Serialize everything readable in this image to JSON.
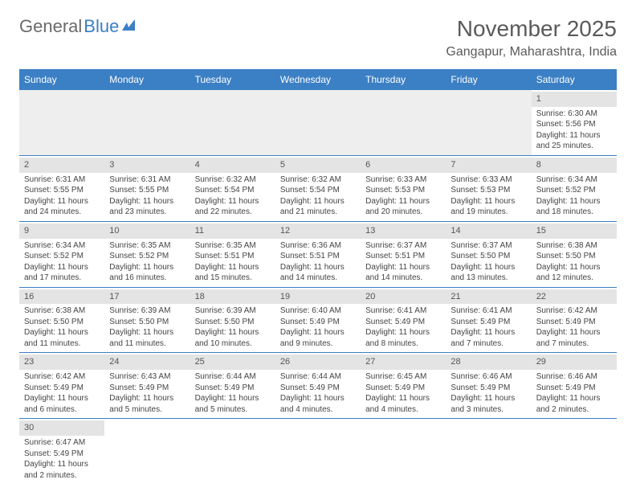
{
  "logo": {
    "general": "General",
    "blue": "Blue"
  },
  "title": "November 2025",
  "location": "Gangapur, Maharashtra, India",
  "colors": {
    "header_bg": "#3b7fc4",
    "daynum_bg": "#e4e4e4",
    "text": "#444",
    "title": "#5a5a5a"
  },
  "weekdays": [
    "Sunday",
    "Monday",
    "Tuesday",
    "Wednesday",
    "Thursday",
    "Friday",
    "Saturday"
  ],
  "weeks": [
    [
      null,
      null,
      null,
      null,
      null,
      null,
      {
        "n": "1",
        "sr": "Sunrise: 6:30 AM",
        "ss": "Sunset: 5:56 PM",
        "dl": "Daylight: 11 hours and 25 minutes."
      }
    ],
    [
      {
        "n": "2",
        "sr": "Sunrise: 6:31 AM",
        "ss": "Sunset: 5:55 PM",
        "dl": "Daylight: 11 hours and 24 minutes."
      },
      {
        "n": "3",
        "sr": "Sunrise: 6:31 AM",
        "ss": "Sunset: 5:55 PM",
        "dl": "Daylight: 11 hours and 23 minutes."
      },
      {
        "n": "4",
        "sr": "Sunrise: 6:32 AM",
        "ss": "Sunset: 5:54 PM",
        "dl": "Daylight: 11 hours and 22 minutes."
      },
      {
        "n": "5",
        "sr": "Sunrise: 6:32 AM",
        "ss": "Sunset: 5:54 PM",
        "dl": "Daylight: 11 hours and 21 minutes."
      },
      {
        "n": "6",
        "sr": "Sunrise: 6:33 AM",
        "ss": "Sunset: 5:53 PM",
        "dl": "Daylight: 11 hours and 20 minutes."
      },
      {
        "n": "7",
        "sr": "Sunrise: 6:33 AM",
        "ss": "Sunset: 5:53 PM",
        "dl": "Daylight: 11 hours and 19 minutes."
      },
      {
        "n": "8",
        "sr": "Sunrise: 6:34 AM",
        "ss": "Sunset: 5:52 PM",
        "dl": "Daylight: 11 hours and 18 minutes."
      }
    ],
    [
      {
        "n": "9",
        "sr": "Sunrise: 6:34 AM",
        "ss": "Sunset: 5:52 PM",
        "dl": "Daylight: 11 hours and 17 minutes."
      },
      {
        "n": "10",
        "sr": "Sunrise: 6:35 AM",
        "ss": "Sunset: 5:52 PM",
        "dl": "Daylight: 11 hours and 16 minutes."
      },
      {
        "n": "11",
        "sr": "Sunrise: 6:35 AM",
        "ss": "Sunset: 5:51 PM",
        "dl": "Daylight: 11 hours and 15 minutes."
      },
      {
        "n": "12",
        "sr": "Sunrise: 6:36 AM",
        "ss": "Sunset: 5:51 PM",
        "dl": "Daylight: 11 hours and 14 minutes."
      },
      {
        "n": "13",
        "sr": "Sunrise: 6:37 AM",
        "ss": "Sunset: 5:51 PM",
        "dl": "Daylight: 11 hours and 14 minutes."
      },
      {
        "n": "14",
        "sr": "Sunrise: 6:37 AM",
        "ss": "Sunset: 5:50 PM",
        "dl": "Daylight: 11 hours and 13 minutes."
      },
      {
        "n": "15",
        "sr": "Sunrise: 6:38 AM",
        "ss": "Sunset: 5:50 PM",
        "dl": "Daylight: 11 hours and 12 minutes."
      }
    ],
    [
      {
        "n": "16",
        "sr": "Sunrise: 6:38 AM",
        "ss": "Sunset: 5:50 PM",
        "dl": "Daylight: 11 hours and 11 minutes."
      },
      {
        "n": "17",
        "sr": "Sunrise: 6:39 AM",
        "ss": "Sunset: 5:50 PM",
        "dl": "Daylight: 11 hours and 11 minutes."
      },
      {
        "n": "18",
        "sr": "Sunrise: 6:39 AM",
        "ss": "Sunset: 5:50 PM",
        "dl": "Daylight: 11 hours and 10 minutes."
      },
      {
        "n": "19",
        "sr": "Sunrise: 6:40 AM",
        "ss": "Sunset: 5:49 PM",
        "dl": "Daylight: 11 hours and 9 minutes."
      },
      {
        "n": "20",
        "sr": "Sunrise: 6:41 AM",
        "ss": "Sunset: 5:49 PM",
        "dl": "Daylight: 11 hours and 8 minutes."
      },
      {
        "n": "21",
        "sr": "Sunrise: 6:41 AM",
        "ss": "Sunset: 5:49 PM",
        "dl": "Daylight: 11 hours and 7 minutes."
      },
      {
        "n": "22",
        "sr": "Sunrise: 6:42 AM",
        "ss": "Sunset: 5:49 PM",
        "dl": "Daylight: 11 hours and 7 minutes."
      }
    ],
    [
      {
        "n": "23",
        "sr": "Sunrise: 6:42 AM",
        "ss": "Sunset: 5:49 PM",
        "dl": "Daylight: 11 hours and 6 minutes."
      },
      {
        "n": "24",
        "sr": "Sunrise: 6:43 AM",
        "ss": "Sunset: 5:49 PM",
        "dl": "Daylight: 11 hours and 5 minutes."
      },
      {
        "n": "25",
        "sr": "Sunrise: 6:44 AM",
        "ss": "Sunset: 5:49 PM",
        "dl": "Daylight: 11 hours and 5 minutes."
      },
      {
        "n": "26",
        "sr": "Sunrise: 6:44 AM",
        "ss": "Sunset: 5:49 PM",
        "dl": "Daylight: 11 hours and 4 minutes."
      },
      {
        "n": "27",
        "sr": "Sunrise: 6:45 AM",
        "ss": "Sunset: 5:49 PM",
        "dl": "Daylight: 11 hours and 4 minutes."
      },
      {
        "n": "28",
        "sr": "Sunrise: 6:46 AM",
        "ss": "Sunset: 5:49 PM",
        "dl": "Daylight: 11 hours and 3 minutes."
      },
      {
        "n": "29",
        "sr": "Sunrise: 6:46 AM",
        "ss": "Sunset: 5:49 PM",
        "dl": "Daylight: 11 hours and 2 minutes."
      }
    ],
    [
      {
        "n": "30",
        "sr": "Sunrise: 6:47 AM",
        "ss": "Sunset: 5:49 PM",
        "dl": "Daylight: 11 hours and 2 minutes."
      },
      null,
      null,
      null,
      null,
      null,
      null
    ]
  ]
}
